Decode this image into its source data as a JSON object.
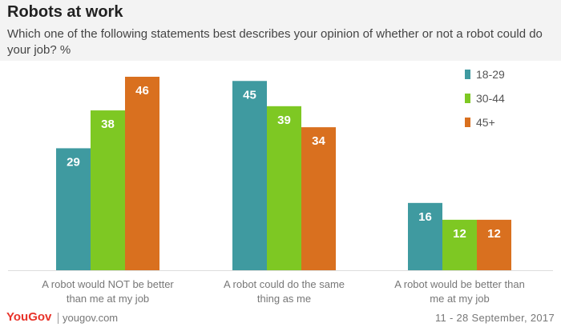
{
  "header": {
    "title": "Robots at work",
    "subtitle": "Which one of the following statements best describes your opinion of whether or not a robot could do your job? %"
  },
  "footer": {
    "brand": "YouGov",
    "site": "yougov.com",
    "date": "11 - 28 September, 2017"
  },
  "colors": {
    "series_18_29": "#3f9aa0",
    "series_30_44": "#7ec823",
    "series_45_plus": "#d9701f",
    "label_text": "#ffffff",
    "axis_text": "#777777"
  },
  "chart_data": {
    "type": "bar",
    "title": "Robots at work",
    "categories": [
      [
        "A robot would NOT be better",
        "than me at my job"
      ],
      [
        "A robot could do the same",
        "thing as me"
      ],
      [
        "A robot would be better than",
        "me at my job"
      ]
    ],
    "series": [
      {
        "name": "18-29",
        "values": [
          29,
          45,
          16
        ]
      },
      {
        "name": "30-44",
        "values": [
          38,
          39,
          12
        ]
      },
      {
        "name": "45+",
        "values": [
          46,
          34,
          12
        ]
      }
    ],
    "ylim": [
      0,
      46
    ],
    "grid": false,
    "legend_position": "top-right",
    "data_labels": true
  }
}
